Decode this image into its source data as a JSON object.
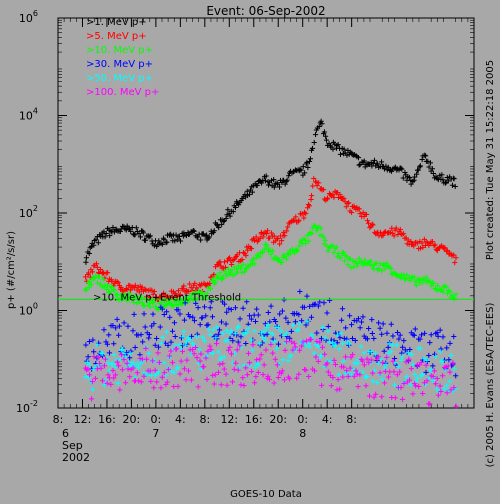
{
  "chart_data": {
    "type": "scatter",
    "title": "Event: 06-Sep-2002",
    "ylabel": "p+ (#/cm²/s/sr)",
    "xlabel": "GOES-10 Data",
    "y_scale": "log",
    "ylim": [
      0.01,
      1000000
    ],
    "y_ticks": [
      {
        "value": 0.01,
        "base": "10",
        "exp": "-2"
      },
      {
        "value": 1,
        "base": "10",
        "exp": "0"
      },
      {
        "value": 100,
        "base": "10",
        "exp": "2"
      },
      {
        "value": 10000,
        "base": "10",
        "exp": "4"
      },
      {
        "value": 1000000,
        "base": "10",
        "exp": "6"
      }
    ],
    "x_unit": "hours since 2002-09-06 08:00",
    "xlim": [
      0,
      68
    ],
    "x_ticks": [
      {
        "hour": 0,
        "label": "8:"
      },
      {
        "hour": 4,
        "label": "12:"
      },
      {
        "hour": 8,
        "label": "16:"
      },
      {
        "hour": 12,
        "label": "20:"
      },
      {
        "hour": 16,
        "label": "0:"
      },
      {
        "hour": 20,
        "label": "4:"
      },
      {
        "hour": 24,
        "label": "8:"
      },
      {
        "hour": 28,
        "label": "12:"
      },
      {
        "hour": 32,
        "label": "16:"
      },
      {
        "hour": 36,
        "label": "20:"
      },
      {
        "hour": 40,
        "label": "0:"
      },
      {
        "hour": 44,
        "label": "4:"
      },
      {
        "hour": 48,
        "label": "8:"
      }
    ],
    "date_labels": [
      {
        "hour": 0,
        "lines": [
          "6",
          "Sep",
          "2002"
        ]
      },
      {
        "hour": 16,
        "lines": [
          "7"
        ]
      },
      {
        "hour": 40,
        "lines": [
          "8"
        ]
      }
    ],
    "threshold": {
      "value": 1.7,
      "label": ">10. MeV p+Event Threshold",
      "color": "#00ee00"
    },
    "side_labels": {
      "created": "Plot created: Tue May 31 15:22:18 2005",
      "credit": "(c) 2005 H. Evans (ESA/TEC-EES)"
    },
    "series": [
      {
        "name": ">1. MeV p+",
        "color": "#000000",
        "points": [
          [
            4.5,
            12
          ],
          [
            6,
            25
          ],
          [
            8,
            40
          ],
          [
            10,
            45
          ],
          [
            12,
            45
          ],
          [
            14,
            35
          ],
          [
            16,
            25
          ],
          [
            18,
            30
          ],
          [
            20,
            30
          ],
          [
            22,
            40
          ],
          [
            24,
            30
          ],
          [
            26,
            55
          ],
          [
            28,
            100
          ],
          [
            30,
            180
          ],
          [
            32,
            320
          ],
          [
            34,
            500
          ],
          [
            36,
            350
          ],
          [
            38,
            600
          ],
          [
            40,
            700
          ],
          [
            41,
            1000
          ],
          [
            42,
            4000
          ],
          [
            43,
            7000
          ],
          [
            44,
            3000
          ],
          [
            46,
            2000
          ],
          [
            48,
            1500
          ],
          [
            50,
            1000
          ],
          [
            52,
            1000
          ],
          [
            54,
            900
          ],
          [
            56,
            700
          ],
          [
            58,
            400
          ],
          [
            60,
            1500
          ],
          [
            62,
            500
          ],
          [
            64,
            500
          ],
          [
            65,
            400
          ]
        ]
      },
      {
        "name": ">5. MeV p+",
        "color": "#ff0000",
        "points": [
          [
            4.5,
            4
          ],
          [
            6,
            8
          ],
          [
            8,
            5
          ],
          [
            10,
            3
          ],
          [
            12,
            3
          ],
          [
            14,
            2.5
          ],
          [
            16,
            2
          ],
          [
            18,
            2
          ],
          [
            20,
            2.5
          ],
          [
            22,
            3
          ],
          [
            24,
            3
          ],
          [
            26,
            8
          ],
          [
            28,
            10
          ],
          [
            30,
            13
          ],
          [
            32,
            25
          ],
          [
            34,
            40
          ],
          [
            36,
            25
          ],
          [
            38,
            60
          ],
          [
            40,
            90
          ],
          [
            41,
            150
          ],
          [
            42,
            500
          ],
          [
            43,
            300
          ],
          [
            44,
            200
          ],
          [
            46,
            250
          ],
          [
            48,
            120
          ],
          [
            50,
            90
          ],
          [
            52,
            40
          ],
          [
            54,
            40
          ],
          [
            56,
            40
          ],
          [
            58,
            20
          ],
          [
            60,
            25
          ],
          [
            62,
            20
          ],
          [
            64,
            15
          ],
          [
            65,
            10
          ]
        ]
      },
      {
        "name": ">10. MeV p+",
        "color": "#00ff00",
        "points": [
          [
            4.5,
            3
          ],
          [
            6,
            5
          ],
          [
            8,
            3
          ],
          [
            10,
            2
          ],
          [
            12,
            1.8
          ],
          [
            14,
            1.5
          ],
          [
            16,
            1.2
          ],
          [
            18,
            1.5
          ],
          [
            20,
            1.5
          ],
          [
            22,
            2
          ],
          [
            24,
            2
          ],
          [
            26,
            5
          ],
          [
            28,
            6
          ],
          [
            30,
            7
          ],
          [
            32,
            10
          ],
          [
            34,
            20
          ],
          [
            36,
            10
          ],
          [
            38,
            15
          ],
          [
            40,
            25
          ],
          [
            41,
            30
          ],
          [
            42,
            50
          ],
          [
            43,
            40
          ],
          [
            44,
            20
          ],
          [
            46,
            15
          ],
          [
            48,
            9
          ],
          [
            50,
            10
          ],
          [
            52,
            8
          ],
          [
            54,
            8
          ],
          [
            56,
            5
          ],
          [
            58,
            4
          ],
          [
            60,
            4
          ],
          [
            62,
            3
          ],
          [
            64,
            2.5
          ],
          [
            65,
            1.8
          ]
        ]
      },
      {
        "name": ">30. MeV p+",
        "color": "#0000ff",
        "points": [
          [
            4.5,
            0.12
          ],
          [
            6,
            0.15
          ],
          [
            8,
            0.2
          ],
          [
            10,
            0.25
          ],
          [
            12,
            0.3
          ],
          [
            14,
            0.35
          ],
          [
            16,
            0.4
          ],
          [
            18,
            0.5
          ],
          [
            20,
            0.5
          ],
          [
            22,
            0.6
          ],
          [
            24,
            0.6
          ],
          [
            26,
            0.6
          ],
          [
            28,
            0.55
          ],
          [
            30,
            0.6
          ],
          [
            32,
            0.5
          ],
          [
            34,
            0.5
          ],
          [
            36,
            0.55
          ],
          [
            38,
            0.7
          ],
          [
            40,
            1
          ],
          [
            41,
            1.5
          ],
          [
            42,
            1
          ],
          [
            43,
            0.7
          ],
          [
            44,
            0.6
          ],
          [
            46,
            0.5
          ],
          [
            48,
            0.35
          ],
          [
            50,
            0.3
          ],
          [
            52,
            0.25
          ],
          [
            54,
            0.2
          ],
          [
            56,
            0.2
          ],
          [
            58,
            0.15
          ],
          [
            60,
            0.15
          ],
          [
            62,
            0.15
          ],
          [
            64,
            0.12
          ],
          [
            65,
            0.12
          ]
        ]
      },
      {
        "name": ">50. MeV p+",
        "color": "#00ffff",
        "points": [
          [
            4.5,
            0.06
          ],
          [
            6,
            0.07
          ],
          [
            8,
            0.08
          ],
          [
            10,
            0.09
          ],
          [
            12,
            0.1
          ],
          [
            14,
            0.11
          ],
          [
            16,
            0.12
          ],
          [
            18,
            0.13
          ],
          [
            20,
            0.15
          ],
          [
            22,
            0.15
          ],
          [
            24,
            0.16
          ],
          [
            26,
            0.17
          ],
          [
            28,
            0.17
          ],
          [
            30,
            0.18
          ],
          [
            32,
            0.17
          ],
          [
            34,
            0.2
          ],
          [
            36,
            0.18
          ],
          [
            38,
            0.22
          ],
          [
            40,
            0.2
          ],
          [
            41,
            0.25
          ],
          [
            42,
            0.2
          ],
          [
            43,
            0.18
          ],
          [
            44,
            0.15
          ],
          [
            46,
            0.13
          ],
          [
            48,
            0.1
          ],
          [
            50,
            0.1
          ],
          [
            52,
            0.09
          ],
          [
            54,
            0.08
          ],
          [
            56,
            0.07
          ],
          [
            58,
            0.07
          ],
          [
            60,
            0.06
          ],
          [
            62,
            0.06
          ],
          [
            64,
            0.05
          ],
          [
            65,
            0.05
          ]
        ]
      },
      {
        "name": ">100. MeV p+",
        "color": "#ff00ff",
        "points": [
          [
            4.5,
            0.04
          ],
          [
            6,
            0.045
          ],
          [
            8,
            0.05
          ],
          [
            10,
            0.05
          ],
          [
            12,
            0.055
          ],
          [
            14,
            0.06
          ],
          [
            16,
            0.06
          ],
          [
            18,
            0.065
          ],
          [
            20,
            0.07
          ],
          [
            22,
            0.07
          ],
          [
            24,
            0.075
          ],
          [
            26,
            0.08
          ],
          [
            28,
            0.08
          ],
          [
            30,
            0.08
          ],
          [
            32,
            0.08
          ],
          [
            34,
            0.085
          ],
          [
            36,
            0.08
          ],
          [
            38,
            0.09
          ],
          [
            40,
            0.1
          ],
          [
            41,
            0.11
          ],
          [
            42,
            0.09
          ],
          [
            43,
            0.08
          ],
          [
            44,
            0.07
          ],
          [
            46,
            0.06
          ],
          [
            48,
            0.05
          ],
          [
            50,
            0.05
          ],
          [
            52,
            0.045
          ],
          [
            54,
            0.04
          ],
          [
            56,
            0.04
          ],
          [
            58,
            0.035
          ],
          [
            60,
            0.035
          ],
          [
            62,
            0.03
          ],
          [
            64,
            0.03
          ],
          [
            65,
            0.03
          ]
        ]
      }
    ]
  }
}
